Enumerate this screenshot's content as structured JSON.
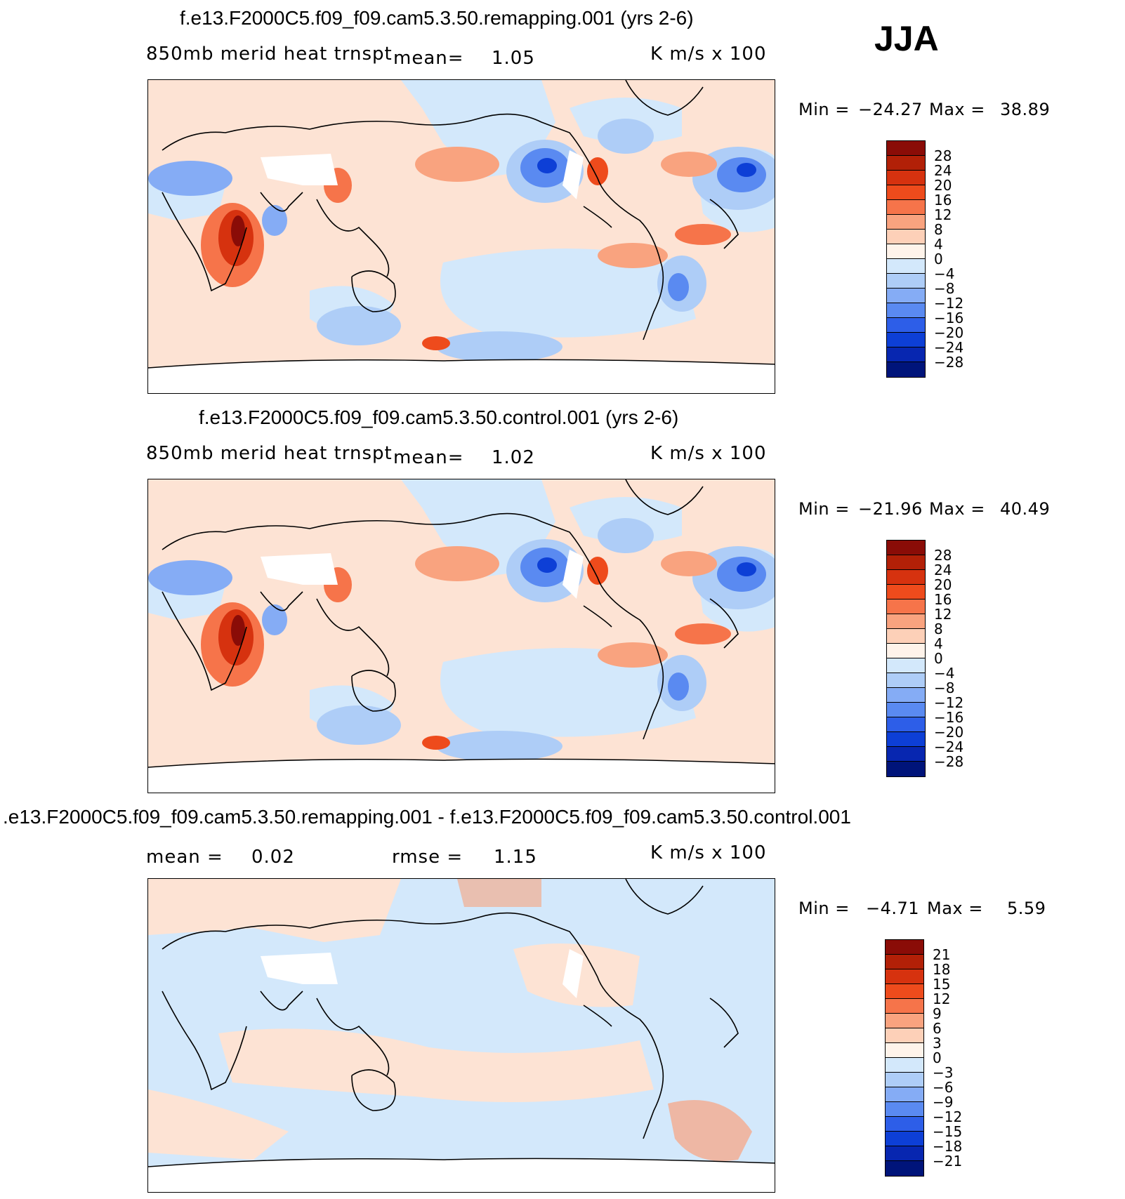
{
  "season": "JJA",
  "panels": [
    {
      "title": "f.e13.F2000C5.f09_f09.cam5.3.50.remapping.001 (yrs 2-6)",
      "variable": "850mb  merid  heat  trnspt",
      "mean_label": "mean=",
      "mean_value": "1.05",
      "units": "K  m/s  x  100",
      "min_label": "Min  =",
      "min_value": "−24.27",
      "max_label": "Max  =",
      "max_value": "38.89",
      "colorbar_labels": [
        "28",
        "24",
        "20",
        "16",
        "12",
        "8",
        "4",
        "0",
        "−4",
        "−8",
        "−12",
        "−16",
        "−20",
        "−24",
        "−28"
      ]
    },
    {
      "title": "f.e13.F2000C5.f09_f09.cam5.3.50.control.001 (yrs 2-6)",
      "variable": "850mb  merid  heat  trnspt",
      "mean_label": "mean=",
      "mean_value": "1.02",
      "units": "K  m/s  x  100",
      "min_label": "Min  =",
      "min_value": "−21.96",
      "max_label": "Max  =",
      "max_value": "40.49",
      "colorbar_labels": [
        "28",
        "24",
        "20",
        "16",
        "12",
        "8",
        "4",
        "0",
        "−4",
        "−8",
        "−12",
        "−16",
        "−20",
        "−24",
        "−28"
      ]
    },
    {
      "title": ".e13.F2000C5.f09_f09.cam5.3.50.remapping.001 - f.e13.F2000C5.f09_f09.cam5.3.50.control.001",
      "variable": "",
      "mean_label": "mean  =",
      "mean_value": "0.02",
      "rmse_label": "rmse  =",
      "rmse_value": "1.15",
      "units": "K  m/s  x  100",
      "min_label": "Min  =",
      "min_value": "−4.71",
      "max_label": "Max  =",
      "max_value": "5.59",
      "colorbar_labels": [
        "21",
        "18",
        "15",
        "12",
        "9",
        "6",
        "3",
        "0",
        "−3",
        "−6",
        "−9",
        "−12",
        "−15",
        "−18",
        "−21"
      ]
    }
  ],
  "colorbar_colors": [
    "#8a0c07",
    "#b22007",
    "#d6320f",
    "#ee4b1c",
    "#f6744a",
    "#f9a37f",
    "#fdd0b8",
    "#fef3ea",
    "#d3e8fb",
    "#aecdf7",
    "#85acf5",
    "#5a8af1",
    "#2d5ee8",
    "#0d3fd6",
    "#0726b0",
    "#00147a"
  ]
}
